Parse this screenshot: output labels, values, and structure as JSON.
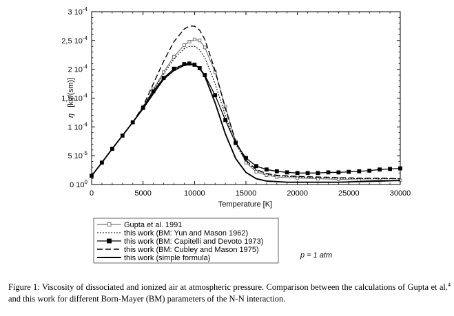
{
  "chart_data": {
    "type": "line",
    "xlabel": "Temperature [K]",
    "ylabel_symbol": "η",
    "ylabel_unit": "[kg/(sm)]",
    "xlim": [
      0,
      30000
    ],
    "ylim": [
      0,
      0.0003
    ],
    "x_ticks": [
      0,
      5000,
      10000,
      15000,
      20000,
      25000,
      30000
    ],
    "x_tick_labels": [
      "0",
      "5000",
      "10000",
      "15000",
      "20000",
      "25000",
      "30000"
    ],
    "y_ticks": [
      {
        "value": 0,
        "mant": "0",
        "exp": "0"
      },
      {
        "value": 5e-05,
        "mant": "5",
        "exp": "-5"
      },
      {
        "value": 0.0001,
        "mant": "1",
        "exp": "-4"
      },
      {
        "value": 0.00015,
        "mant": "1,5",
        "exp": "-4"
      },
      {
        "value": 0.0002,
        "mant": "2",
        "exp": "-4"
      },
      {
        "value": 0.00025,
        "mant": "2,5",
        "exp": "-4"
      },
      {
        "value": 0.0003,
        "mant": "3",
        "exp": "-4"
      }
    ],
    "annotation": "p = 1 atm",
    "series": [
      {
        "name": "Gupta et al. 1991",
        "style": "thin-open-square",
        "x": [
          0,
          1000,
          2000,
          3000,
          4000,
          5000,
          6000,
          7000,
          8000,
          9000,
          9500,
          10000,
          10500,
          11000,
          12000,
          13000,
          14000,
          15000,
          16000,
          17000,
          18000,
          20000,
          22000,
          24000,
          26000,
          28000,
          30000
        ],
        "y": [
          1.5e-05,
          3.8e-05,
          6.2e-05,
          8.5e-05,
          0.000108,
          0.000135,
          0.000165,
          0.000195,
          0.000222,
          0.000242,
          0.000248,
          0.000252,
          0.00025,
          0.000238,
          0.000195,
          0.000135,
          7.5e-05,
          3.8e-05,
          2.2e-05,
          1.6e-05,
          1.3e-05,
          1.1e-05,
          1e-05,
          9e-06,
          8e-06,
          7e-06,
          7e-06
        ]
      },
      {
        "name": "this work (BM: Yun and Mason 1962)",
        "style": "dotted",
        "x": [
          0,
          1000,
          2000,
          3000,
          4000,
          5000,
          6000,
          7000,
          8000,
          9000,
          9500,
          10000,
          10500,
          11000,
          12000,
          13000,
          14000,
          15000,
          16000,
          17000,
          18000,
          20000,
          22000,
          24000,
          26000,
          28000,
          30000
        ],
        "y": [
          1.5e-05,
          3.8e-05,
          6.2e-05,
          8.5e-05,
          0.000108,
          0.000135,
          0.000163,
          0.000192,
          0.000218,
          0.000236,
          0.00024,
          0.00024,
          0.000234,
          0.00022,
          0.000175,
          0.00012,
          7e-05,
          4e-05,
          2.5e-05,
          1.8e-05,
          1.5e-05,
          1.3e-05,
          1.2e-05,
          1.1e-05,
          1e-05,
          1e-05,
          1e-05
        ]
      },
      {
        "name": "this work (BM: Capitelli and Devoto 1973)",
        "style": "filled-square",
        "x": [
          0,
          1000,
          2000,
          3000,
          4000,
          5000,
          6000,
          7000,
          8000,
          9000,
          9500,
          10000,
          10500,
          11000,
          12000,
          13000,
          14000,
          15000,
          16000,
          17000,
          18000,
          19000,
          20000,
          21000,
          22000,
          23000,
          24000,
          25000,
          26000,
          27000,
          28000,
          29000,
          30000
        ],
        "y": [
          1.5e-05,
          3.8e-05,
          6.2e-05,
          8.5e-05,
          0.000108,
          0.000133,
          0.000162,
          0.000185,
          0.000201,
          0.000209,
          0.00021,
          0.000208,
          0.000202,
          0.00019,
          0.000155,
          0.000112,
          7.2e-05,
          4.6e-05,
          3.2e-05,
          2.6e-05,
          2.3e-05,
          2.1e-05,
          2e-05,
          2e-05,
          2e-05,
          2.1e-05,
          2.1e-05,
          2.2e-05,
          2.3e-05,
          2.4e-05,
          2.6e-05,
          2.7e-05,
          2.8e-05
        ]
      },
      {
        "name": "this work (BM: Cubley and Mason 1975)",
        "style": "dashed",
        "x": [
          0,
          1000,
          2000,
          3000,
          4000,
          5000,
          6000,
          7000,
          8000,
          9000,
          9500,
          10000,
          10500,
          11000,
          12000,
          13000,
          14000,
          15000,
          16000,
          17000,
          18000,
          20000,
          22000,
          24000,
          26000,
          28000,
          30000
        ],
        "y": [
          1.5e-05,
          3.8e-05,
          6.2e-05,
          8.5e-05,
          0.000108,
          0.000136,
          0.000175,
          0.000214,
          0.000248,
          0.00027,
          0.000275,
          0.000275,
          0.000268,
          0.000252,
          0.000198,
          0.000132,
          7.5e-05,
          4.2e-05,
          2.6e-05,
          1.9e-05,
          1.6e-05,
          1.4e-05,
          1.3e-05,
          1.2e-05,
          1.1e-05,
          1.1e-05,
          1e-05
        ]
      },
      {
        "name": "this work (simple formula)",
        "style": "solid-thick",
        "x": [
          0,
          1000,
          2000,
          3000,
          4000,
          5000,
          6000,
          7000,
          8000,
          9000,
          9500,
          10000,
          10500,
          11000,
          12000,
          13000,
          14000,
          15000,
          16000,
          17000,
          18000,
          19000,
          20000,
          22000,
          24000,
          26000,
          28000,
          30000
        ],
        "y": [
          1.5e-05,
          3.8e-05,
          6.2e-05,
          8.5e-05,
          0.000108,
          0.000132,
          0.000158,
          0.000183,
          0.000198,
          0.000207,
          0.000209,
          0.000208,
          0.000202,
          0.000188,
          0.000142,
          8.8e-05,
          4.5e-05,
          2.1e-05,
          1e-05,
          6e-06,
          5e-06,
          4e-06,
          4e-06,
          4e-06,
          4e-06,
          5e-06,
          6e-06,
          7e-06
        ]
      }
    ]
  },
  "caption": {
    "lead": "Figure 1: Viscosity of dissociated and ionized air at atmospheric pressure. Comparison between the calculations of Gupta et al.",
    "ref": "4",
    "tail": " and this work for different Born-Mayer (BM) parameters of the N-N interaction."
  }
}
